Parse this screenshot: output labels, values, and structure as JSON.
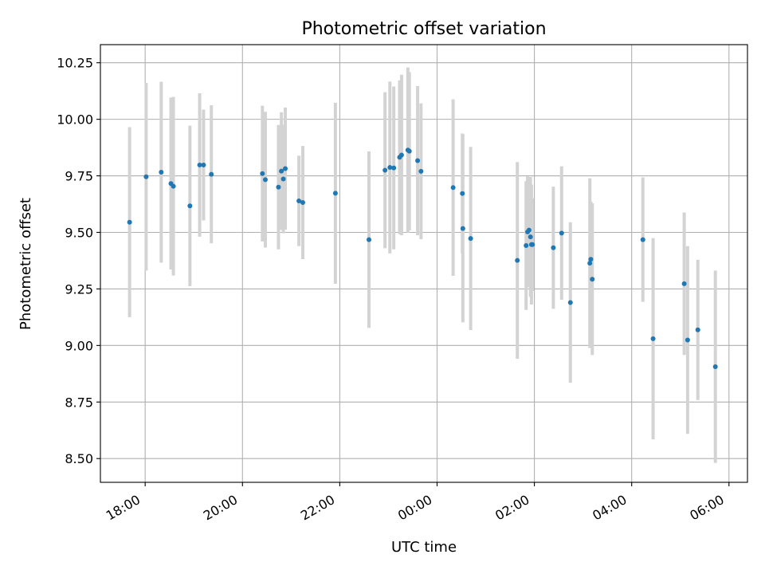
{
  "chart_data": {
    "type": "scatter",
    "title": "Photometric offset variation",
    "xlabel": "UTC time",
    "ylabel": "Photometric offset",
    "x_unit": "hours since 00:00 UTC",
    "xlim": [
      -6.92,
      6.38
    ],
    "ylim": [
      8.395,
      10.33
    ],
    "grid": true,
    "xticks": [
      -6,
      -4,
      -2,
      0,
      2,
      4,
      6
    ],
    "xtick_labels": [
      "18:00",
      "20:00",
      "22:00",
      "00:00",
      "02:00",
      "04:00",
      "06:00"
    ],
    "yticks": [
      8.5,
      8.75,
      9.0,
      9.25,
      9.5,
      9.75,
      10.0,
      10.25
    ],
    "ytick_labels": [
      "8.50",
      "8.75",
      "9.00",
      "9.25",
      "9.50",
      "9.75",
      "10.00",
      "10.25"
    ],
    "colors": {
      "point": "#1f77b4",
      "errorbar": "#d3d3d3",
      "grid": "#b0b0b0"
    },
    "series": [
      {
        "name": "offset",
        "x": [
          -6.32,
          -5.98,
          -5.67,
          -5.47,
          -5.42,
          -5.08,
          -4.88,
          -4.8,
          -4.64,
          -3.59,
          -3.53,
          -3.26,
          -3.2,
          -3.16,
          -3.12,
          -2.84,
          -2.76,
          -2.09,
          -1.4,
          -1.07,
          -0.97,
          -0.89,
          -0.77,
          -0.73,
          -0.6,
          -0.57,
          -0.4,
          -0.33,
          0.33,
          0.52,
          0.53,
          0.69,
          1.65,
          1.83,
          1.86,
          1.89,
          1.92,
          1.94,
          1.96,
          2.39,
          2.56,
          2.74,
          3.14,
          3.16,
          3.19,
          4.23,
          4.44,
          5.08,
          5.15,
          5.36,
          5.72
        ],
        "y": [
          9.545,
          9.746,
          9.766,
          9.716,
          9.704,
          9.617,
          9.798,
          9.798,
          9.757,
          9.76,
          9.733,
          9.7,
          9.771,
          9.736,
          9.782,
          9.639,
          9.632,
          9.673,
          9.468,
          9.775,
          9.787,
          9.785,
          9.832,
          9.842,
          9.864,
          9.859,
          9.817,
          9.77,
          9.698,
          9.672,
          9.517,
          9.473,
          9.376,
          9.442,
          9.502,
          9.51,
          9.48,
          9.446,
          9.446,
          9.432,
          9.497,
          9.19,
          9.364,
          9.381,
          9.293,
          9.468,
          9.03,
          9.273,
          9.024,
          9.069,
          8.906
        ],
        "yerr": [
          0.42,
          0.415,
          0.4,
          0.38,
          0.395,
          0.355,
          0.317,
          0.245,
          0.305,
          0.3,
          0.3,
          0.275,
          0.26,
          0.24,
          0.27,
          0.2,
          0.25,
          0.4,
          0.39,
          0.345,
          0.38,
          0.36,
          0.34,
          0.355,
          0.365,
          0.35,
          0.33,
          0.3,
          0.39,
          0.265,
          0.415,
          0.405,
          0.435,
          0.285,
          0.245,
          0.235,
          0.265,
          0.265,
          0.205,
          0.27,
          0.295,
          0.355,
          0.375,
          0.255,
          0.335,
          0.275,
          0.445,
          0.315,
          0.415,
          0.31,
          0.425
        ]
      }
    ]
  }
}
